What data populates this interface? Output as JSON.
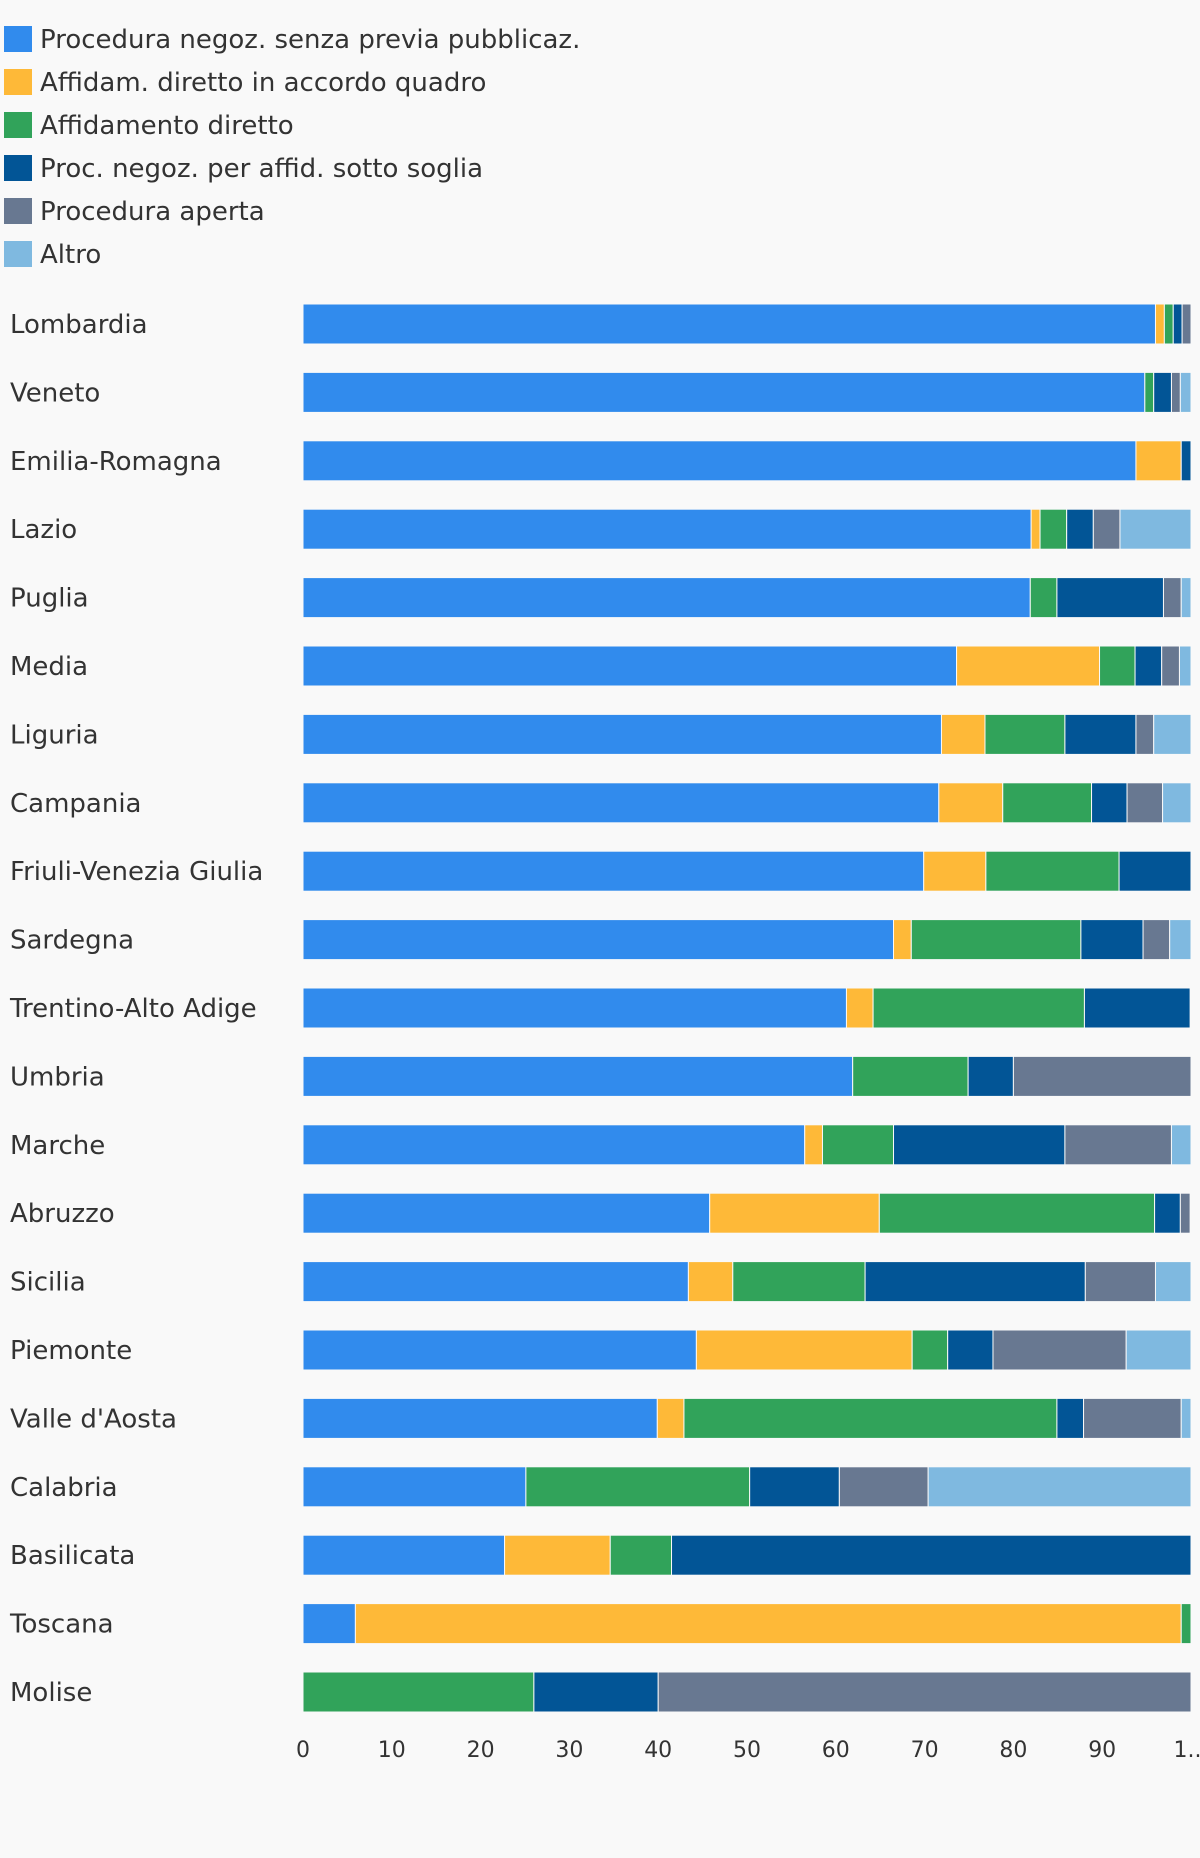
{
  "chart_data": {
    "type": "bar",
    "orientation": "horizontal",
    "stacked": true,
    "title": "",
    "xlabel": "",
    "ylabel": "",
    "xlim": [
      0,
      100
    ],
    "x_ticks": [
      "0",
      "10",
      "20",
      "30",
      "40",
      "50",
      "60",
      "70",
      "80",
      "90",
      "1..."
    ],
    "grid": false,
    "legend_position": "top-left",
    "categories": [
      "Lombardia",
      "Veneto",
      "Emilia-Romagna",
      "Lazio",
      "Puglia",
      "Media",
      "Liguria",
      "Campania",
      "Friuli-Venezia Giulia",
      "Sardegna",
      "Trentino-Alto Adige",
      "Umbria",
      "Marche",
      "Abruzzo",
      "Sicilia",
      "Piemonte",
      "Valle d'Aosta",
      "Calabria",
      "Basilicata",
      "Toscana",
      "Molise"
    ],
    "series": [
      {
        "name": "Procedura negoz. senza previa pubblicaz.",
        "color": "#318bed",
        "values": [
          96,
          94.8,
          93.8,
          82,
          81.9,
          73.6,
          71.9,
          71.6,
          69.9,
          66.5,
          61.2,
          61.9,
          56.5,
          45.8,
          43.4,
          44.3,
          39.9,
          25.1,
          22.7,
          5.9,
          0
        ]
      },
      {
        "name": "Affidam. diretto in accordo quadro",
        "color": "#feb938",
        "values": [
          1,
          0,
          5.1,
          1,
          0,
          16.1,
          4.9,
          7.2,
          7,
          2,
          3,
          0,
          2,
          19.1,
          5,
          24.3,
          3,
          0,
          11.9,
          93,
          0
        ]
      },
      {
        "name": "Affidamento diretto",
        "color": "#31a35a",
        "values": [
          1,
          1,
          0,
          3,
          3,
          4,
          9,
          10,
          15,
          19.1,
          23.8,
          13,
          8,
          31,
          14.9,
          4,
          42,
          25.2,
          6.9,
          1.1,
          26
        ]
      },
      {
        "name": "Proc. negoz. per affid. sotto soglia",
        "color": "#025596",
        "values": [
          1,
          2,
          1.1,
          3,
          12,
          3,
          8,
          4,
          8.1,
          7,
          11.9,
          5.1,
          19.3,
          2.9,
          24.8,
          5.1,
          3,
          10.1,
          58.5,
          0,
          14
        ]
      },
      {
        "name": "Procedura aperta",
        "color": "#687891",
        "values": [
          1,
          1,
          0,
          3,
          2,
          2,
          2,
          4,
          0,
          3,
          0,
          20,
          12,
          1.1,
          7.9,
          15,
          11,
          10,
          0,
          0,
          60
        ]
      },
      {
        "name": "Altro",
        "color": "#7fb9e0",
        "values": [
          0,
          1.2,
          0,
          8,
          1.1,
          1.3,
          4.2,
          3.2,
          0,
          2.4,
          0,
          0,
          2.2,
          0,
          4,
          7.3,
          1.1,
          29.6,
          0,
          0,
          0
        ]
      }
    ]
  }
}
